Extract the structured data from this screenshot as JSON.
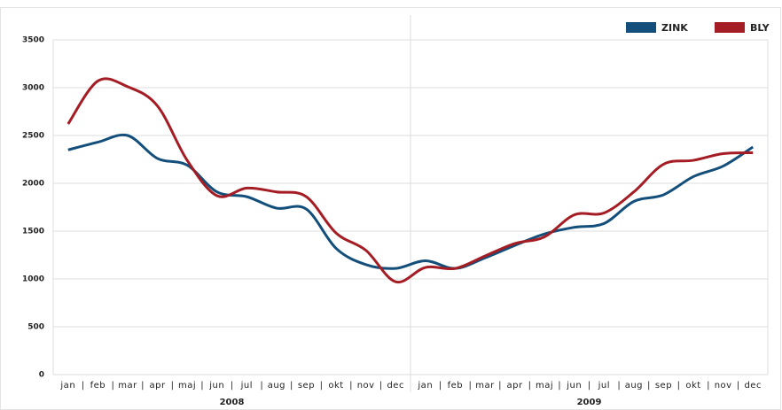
{
  "chart_data": {
    "type": "line",
    "categories": [
      "jan",
      "feb",
      "mar",
      "apr",
      "maj",
      "jun",
      "jul",
      "aug",
      "sep",
      "okt",
      "nov",
      "dec",
      "jan",
      "feb",
      "mar",
      "apr",
      "maj",
      "jun",
      "jul",
      "aug",
      "sep",
      "okt",
      "nov",
      "dec"
    ],
    "category_separator": "|",
    "groups": [
      "2008",
      "2009"
    ],
    "series": [
      {
        "name": "ZINK",
        "color": "#134f7a",
        "values": [
          2350,
          2430,
          2500,
          2260,
          2190,
          1910,
          1860,
          1740,
          1730,
          1320,
          1150,
          1110,
          1190,
          1110,
          1220,
          1350,
          1470,
          1540,
          1580,
          1810,
          1880,
          2070,
          2180,
          2380
        ]
      },
      {
        "name": "BLY",
        "color": "#a51d24",
        "values": [
          2620,
          3070,
          3010,
          2810,
          2240,
          1870,
          1950,
          1910,
          1860,
          1480,
          1300,
          970,
          1120,
          1110,
          1240,
          1370,
          1440,
          1670,
          1690,
          1910,
          2200,
          2240,
          2310,
          2320
        ]
      }
    ],
    "ylim": [
      0,
      3500
    ],
    "yticks": [
      0,
      500,
      1000,
      1500,
      2000,
      2500,
      3000,
      3500
    ],
    "grid": true,
    "legend": "top-right"
  }
}
